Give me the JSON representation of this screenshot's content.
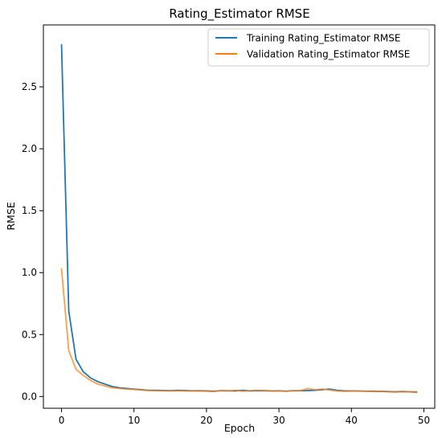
{
  "chart_data": {
    "type": "line",
    "title": "Rating_Estimator RMSE",
    "xlabel": "Epoch",
    "ylabel": "RMSE",
    "xlim": [
      -2.5,
      51.5
    ],
    "ylim": [
      -0.095,
      3.0
    ],
    "xticks": [
      0,
      10,
      20,
      30,
      40,
      50
    ],
    "yticks": [
      0.0,
      0.5,
      1.0,
      1.5,
      2.0,
      2.5
    ],
    "ytick_labels": [
      "0.0",
      "0.5",
      "1.0",
      "1.5",
      "2.0",
      "2.5"
    ],
    "grid": false,
    "legend_position": "top-right",
    "x": [
      0,
      1,
      2,
      3,
      4,
      5,
      6,
      7,
      8,
      9,
      10,
      11,
      12,
      13,
      14,
      15,
      16,
      17,
      18,
      19,
      20,
      21,
      22,
      23,
      24,
      25,
      26,
      27,
      28,
      29,
      30,
      31,
      32,
      33,
      34,
      35,
      36,
      37,
      38,
      39,
      40,
      41,
      42,
      43,
      44,
      45,
      46,
      47,
      48,
      49
    ],
    "series": [
      {
        "name": "Training Rating_Estimator RMSE",
        "color": "#1f77b4",
        "values": [
          2.84,
          0.69,
          0.3,
          0.2,
          0.15,
          0.12,
          0.1,
          0.08,
          0.07,
          0.065,
          0.06,
          0.055,
          0.05,
          0.05,
          0.048,
          0.047,
          0.05,
          0.048,
          0.046,
          0.047,
          0.045,
          0.043,
          0.047,
          0.046,
          0.045,
          0.05,
          0.045,
          0.047,
          0.046,
          0.045,
          0.046,
          0.043,
          0.047,
          0.046,
          0.048,
          0.05,
          0.055,
          0.06,
          0.05,
          0.045,
          0.045,
          0.044,
          0.043,
          0.043,
          0.042,
          0.04,
          0.038,
          0.04,
          0.038,
          0.036
        ]
      },
      {
        "name": "Validation Rating_Estimator RMSE",
        "color": "#ff7f0e",
        "values": [
          1.03,
          0.37,
          0.22,
          0.17,
          0.13,
          0.1,
          0.085,
          0.07,
          0.065,
          0.06,
          0.058,
          0.052,
          0.048,
          0.047,
          0.046,
          0.045,
          0.046,
          0.045,
          0.044,
          0.045,
          0.043,
          0.04,
          0.048,
          0.045,
          0.05,
          0.042,
          0.047,
          0.05,
          0.048,
          0.044,
          0.045,
          0.042,
          0.046,
          0.048,
          0.065,
          0.055,
          0.06,
          0.052,
          0.045,
          0.042,
          0.044,
          0.045,
          0.042,
          0.04,
          0.041,
          0.038,
          0.036,
          0.038,
          0.037,
          0.033
        ]
      }
    ]
  }
}
